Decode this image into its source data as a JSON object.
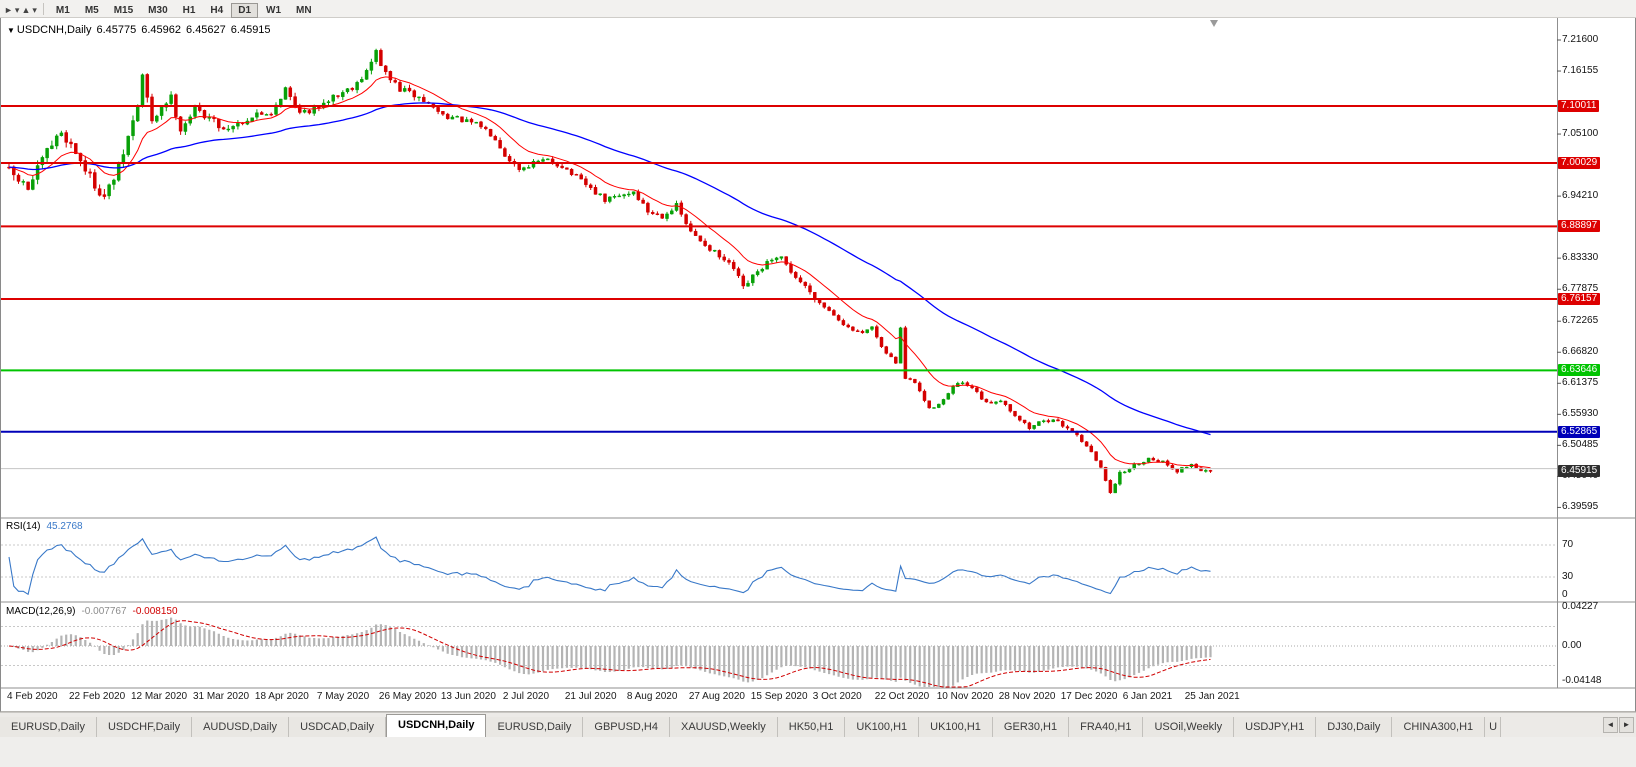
{
  "toolbar": {
    "icons": [
      {
        "glyph": "►",
        "name": "cursor-tool-icon"
      },
      {
        "glyph": "▾",
        "name": "cursor-tool-caret-icon"
      },
      {
        "glyph": "▲",
        "name": "chart-type-tool-icon"
      },
      {
        "glyph": "▾",
        "name": "chart-type-tool-caret-icon"
      }
    ],
    "timeframes": [
      "M1",
      "M5",
      "M15",
      "M30",
      "H1",
      "H4",
      "D1",
      "W1",
      "MN"
    ],
    "active_timeframe": "D1"
  },
  "chart_title": {
    "collapse_icon": "▼",
    "symbol_period": "USDCNH,Daily",
    "open": "6.45775",
    "high": "6.45962",
    "low": "6.45627",
    "close": "6.45915"
  },
  "chart_data": {
    "type": "candlestick",
    "symbol": "USDCNH",
    "period": "Daily",
    "ylim": [
      6.39595,
      7.216
    ],
    "num_bars": 253,
    "bars_per_date_tick": 13,
    "x_axis_dates": [
      "4 Feb 2020",
      "22 Feb 2020",
      "12 Mar 2020",
      "31 Mar 2020",
      "18 Apr 2020",
      "7 May 2020",
      "26 May 2020",
      "13 Jun 2020",
      "2 Jul 2020",
      "21 Jul 2020",
      "8 Aug 2020",
      "27 Aug 2020",
      "15 Sep 2020",
      "3 Oct 2020",
      "22 Oct 2020",
      "10 Nov 2020",
      "28 Nov 2020",
      "17 Dec 2020",
      "6 Jan 2021",
      "25 Jan 2021"
    ],
    "close_path_anchors": [
      [
        0,
        6.985
      ],
      [
        4,
        6.955
      ],
      [
        8,
        7.02
      ],
      [
        11,
        7.055
      ],
      [
        14,
        7.02
      ],
      [
        17,
        6.975
      ],
      [
        20,
        6.94
      ],
      [
        23,
        6.99
      ],
      [
        25,
        7.045
      ],
      [
        27,
        7.1
      ],
      [
        28,
        7.155
      ],
      [
        30,
        7.07
      ],
      [
        32,
        7.1
      ],
      [
        34,
        7.115
      ],
      [
        36,
        7.06
      ],
      [
        39,
        7.095
      ],
      [
        42,
        7.08
      ],
      [
        45,
        7.06
      ],
      [
        48,
        7.07
      ],
      [
        52,
        7.085
      ],
      [
        55,
        7.09
      ],
      [
        58,
        7.13
      ],
      [
        60,
        7.1
      ],
      [
        63,
        7.085
      ],
      [
        66,
        7.11
      ],
      [
        69,
        7.12
      ],
      [
        72,
        7.135
      ],
      [
        75,
        7.16
      ],
      [
        77,
        7.195
      ],
      [
        79,
        7.155
      ],
      [
        82,
        7.13
      ],
      [
        86,
        7.115
      ],
      [
        91,
        7.085
      ],
      [
        95,
        7.075
      ],
      [
        99,
        7.065
      ],
      [
        102,
        7.045
      ],
      [
        104,
        7.015
      ],
      [
        107,
        6.99
      ],
      [
        110,
        7.0
      ],
      [
        113,
        7.005
      ],
      [
        116,
        6.995
      ],
      [
        119,
        6.975
      ],
      [
        122,
        6.955
      ],
      [
        125,
        6.935
      ],
      [
        128,
        6.942
      ],
      [
        131,
        6.95
      ],
      [
        134,
        6.915
      ],
      [
        137,
        6.908
      ],
      [
        140,
        6.925
      ],
      [
        143,
        6.878
      ],
      [
        146,
        6.858
      ],
      [
        149,
        6.835
      ],
      [
        152,
        6.815
      ],
      [
        154,
        6.78
      ],
      [
        156,
        6.8
      ],
      [
        159,
        6.825
      ],
      [
        162,
        6.832
      ],
      [
        165,
        6.8
      ],
      [
        168,
        6.775
      ],
      [
        170,
        6.755
      ],
      [
        173,
        6.735
      ],
      [
        176,
        6.71
      ],
      [
        179,
        6.7
      ],
      [
        181,
        6.712
      ],
      [
        183,
        6.675
      ],
      [
        186,
        6.65
      ],
      [
        187,
        6.712
      ],
      [
        188,
        6.622
      ],
      [
        190,
        6.615
      ],
      [
        193,
        6.568
      ],
      [
        196,
        6.585
      ],
      [
        199,
        6.615
      ],
      [
        202,
        6.605
      ],
      [
        205,
        6.578
      ],
      [
        208,
        6.585
      ],
      [
        211,
        6.558
      ],
      [
        214,
        6.535
      ],
      [
        217,
        6.55
      ],
      [
        220,
        6.545
      ],
      [
        223,
        6.53
      ],
      [
        226,
        6.505
      ],
      [
        229,
        6.465
      ],
      [
        231,
        6.424
      ],
      [
        233,
        6.455
      ],
      [
        236,
        6.47
      ],
      [
        239,
        6.482
      ],
      [
        242,
        6.476
      ],
      [
        245,
        6.46
      ],
      [
        248,
        6.472
      ],
      [
        250,
        6.462
      ],
      [
        252,
        6.45915
      ]
    ],
    "last_close": 6.45915,
    "current_price": "6.45915",
    "up_color": "#08a008",
    "down_color": "#d40000",
    "moving_averages": [
      {
        "name": "fast-ma",
        "color": "#ff0000",
        "period": 12
      },
      {
        "name": "slow-ma",
        "color": "#0000ff",
        "period": 55
      }
    ],
    "hlines": [
      {
        "price": 7.10011,
        "color": "#dd0000",
        "width": 2,
        "label": true,
        "role": "resistance"
      },
      {
        "price": 7.00029,
        "color": "#dd0000",
        "width": 2,
        "label": true,
        "role": "resistance"
      },
      {
        "price": 6.88897,
        "color": "#dd0000",
        "width": 2,
        "label": true,
        "role": "resistance"
      },
      {
        "price": 6.76157,
        "color": "#dd0000",
        "width": 2,
        "label": true,
        "role": "resistance"
      },
      {
        "price": 6.63646,
        "color": "#00c400",
        "width": 2,
        "label": true,
        "role": "support"
      },
      {
        "price": 6.52865,
        "color": "#0000b8",
        "width": 2,
        "label": true,
        "role": "support"
      },
      {
        "price": 6.464,
        "color": "#c4c4c4",
        "width": 1,
        "label": false,
        "role": "level"
      }
    ],
    "price_scale_labels": [
      "7.21600",
      "7.16155",
      "7.05100",
      "6.94210",
      "6.83330",
      "6.77875",
      "6.72265",
      "6.66820",
      "6.61375",
      "6.55930",
      "6.50485",
      "6.45040",
      "6.39595"
    ],
    "current_price_box_color": "#2f2f2f",
    "indicators": [
      {
        "name": "RSI",
        "label": "RSI(14)",
        "value": "45.2768",
        "color": "#3878c8",
        "levels": [
          70,
          30
        ],
        "scale_labels": [
          "70",
          "30",
          "0"
        ]
      },
      {
        "name": "MACD",
        "label": "MACD(12,26,9)",
        "values": [
          "-0.007767",
          "-0.008150"
        ],
        "histogram_color": "#b4b4b4",
        "signal_color": "#d00000",
        "scale_labels": [
          "0.04227",
          "0.00",
          "-0.04148"
        ]
      }
    ]
  },
  "tabs": {
    "items": [
      "EURUSD,Daily",
      "USDCHF,Daily",
      "AUDUSD,Daily",
      "USDCAD,Daily",
      "USDCNH,Daily",
      "EURUSD,Daily",
      "GBPUSD,H4",
      "XAUUSD,Weekly",
      "HK50,H1",
      "UK100,H1",
      "UK100,H1",
      "GER30,H1",
      "FRA40,H1",
      "USOil,Weekly",
      "USDJPY,H1",
      "DJ30,Daily",
      "CHINA300,H1"
    ],
    "active_index": 4,
    "overflow_tab": "U",
    "scroll_left_icon": "◄",
    "scroll_right_icon": "►"
  }
}
